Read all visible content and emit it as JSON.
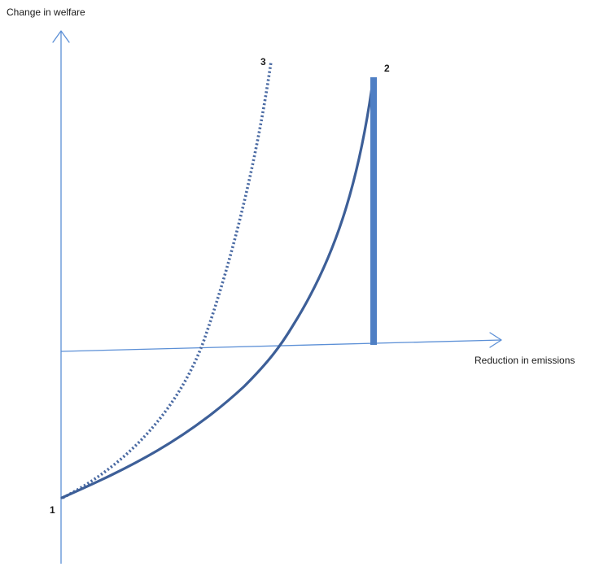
{
  "axes": {
    "y_label": "Change in welfare",
    "x_label": "Reduction in emissions"
  },
  "points": {
    "p1": "1",
    "p2": "2",
    "p3": "3"
  },
  "colors": {
    "axis": "#5b8fd6",
    "solid_curve": "#3d5f98",
    "dotted_curve": "#4a6aa3",
    "bar": "#4f7fc4"
  }
}
